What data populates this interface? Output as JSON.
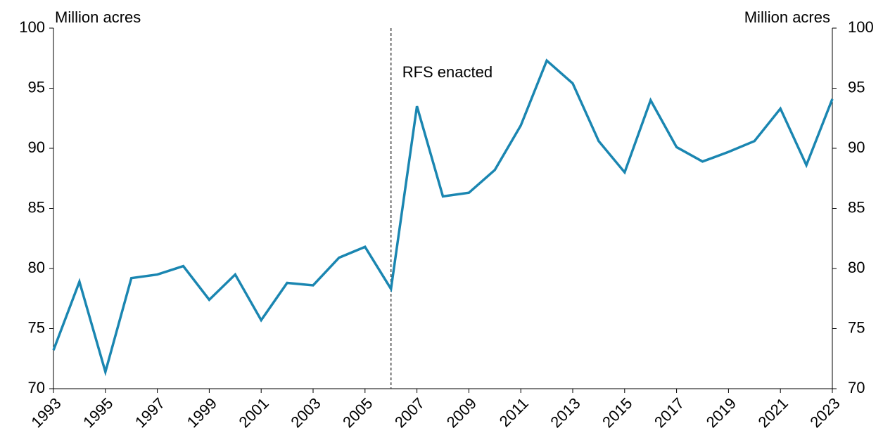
{
  "chart_data": {
    "type": "line",
    "y_label": "Million acres",
    "y2_label": "Million acres",
    "x": [
      1993,
      1994,
      1995,
      1996,
      1997,
      1998,
      1999,
      2000,
      2001,
      2002,
      2003,
      2004,
      2005,
      2006,
      2007,
      2008,
      2009,
      2010,
      2011,
      2012,
      2013,
      2014,
      2015,
      2016,
      2017,
      2018,
      2019,
      2020,
      2021,
      2022,
      2023
    ],
    "series": [
      {
        "name": "Acres",
        "color": "#1a86b1",
        "values": [
          73.2,
          78.9,
          71.4,
          79.2,
          79.5,
          80.2,
          77.4,
          79.5,
          75.7,
          78.8,
          78.6,
          80.9,
          81.8,
          78.3,
          93.5,
          86.0,
          86.3,
          88.2,
          91.9,
          97.3,
          95.4,
          90.6,
          88.0,
          94.0,
          90.1,
          88.9,
          89.7,
          90.6,
          93.3,
          88.6,
          94.1
        ]
      }
    ],
    "xlim": [
      1993,
      2023
    ],
    "xticks": [
      1993,
      1995,
      1997,
      1999,
      2001,
      2003,
      2005,
      2007,
      2009,
      2011,
      2013,
      2015,
      2017,
      2019,
      2021,
      2023
    ],
    "ylim": [
      70,
      100
    ],
    "yticks": [
      70,
      75,
      80,
      85,
      90,
      95,
      100
    ],
    "y2lim": [
      70,
      100
    ],
    "y2ticks": [
      70,
      75,
      80,
      85,
      90,
      95,
      100
    ],
    "annotations": [
      {
        "text": "RFS enacted",
        "x": 2006
      }
    ],
    "grid": false
  }
}
